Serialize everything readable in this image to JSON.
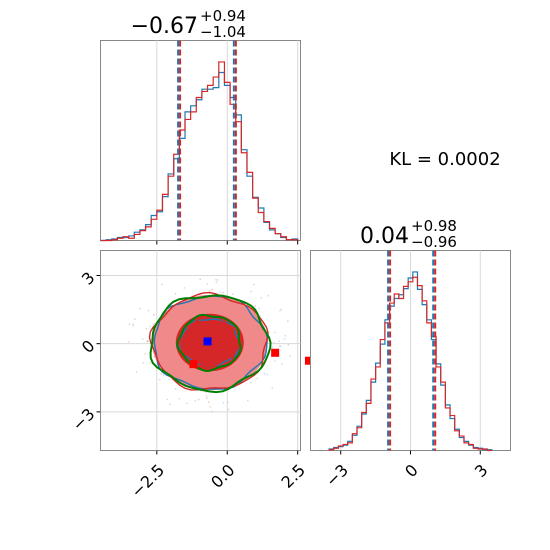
{
  "chart_data": {
    "type": "corner",
    "annotation": "KL = 0.0002",
    "panels": [
      {
        "position": "top-left",
        "type": "histogram",
        "parameter_index": 0,
        "title": {
          "median": "−0.67",
          "plus": "+0.94",
          "minus": "−1.04"
        },
        "xlim": [
          -4.5,
          2.6
        ],
        "xticks": [
          -2.5,
          0.0,
          2.5
        ],
        "xtick_labels": [],
        "quantile_lines": [
          -1.71,
          0.27
        ],
        "bin_edges": [
          -4.5,
          -4.3,
          -4.1,
          -3.9,
          -3.7,
          -3.5,
          -3.3,
          -3.1,
          -2.9,
          -2.7,
          -2.5,
          -2.3,
          -2.1,
          -1.9,
          -1.7,
          -1.5,
          -1.3,
          -1.1,
          -0.9,
          -0.7,
          -0.5,
          -0.3,
          -0.1,
          0.1,
          0.3,
          0.5,
          0.7,
          0.9,
          1.1,
          1.3,
          1.5,
          1.7,
          1.9,
          2.1,
          2.3,
          2.5
        ],
        "series": [
          {
            "name": "",
            "color": "#1f77b4",
            "counts": [
              0,
              1,
              2,
              4,
              4,
              6,
              11,
              14,
              21,
              33,
              38,
              58,
              88,
              108,
              135,
              170,
              178,
              186,
              200,
              200,
              202,
              222,
              205,
              189,
              166,
              120,
              85,
              57,
              43,
              24,
              14,
              9,
              4,
              1,
              2
            ]
          },
          {
            "name": "",
            "color": "#d62728",
            "counts": [
              0,
              0,
              1,
              3,
              5,
              3,
              8,
              13,
              18,
              28,
              40,
              61,
              85,
              114,
              146,
              160,
              170,
              189,
              197,
              205,
              216,
              236,
              209,
              180,
              157,
              116,
              90,
              56,
              37,
              25,
              16,
              9,
              5,
              1,
              1
            ]
          }
        ]
      },
      {
        "position": "bottom-right",
        "type": "histogram",
        "parameter_index": 1,
        "title": {
          "median": "0.04",
          "plus": "+0.98",
          "minus": "−0.96"
        },
        "xlim": [
          -4.3,
          4.3
        ],
        "xticks": [
          -3,
          0,
          3
        ],
        "xtick_labels": [
          "−3",
          "0",
          "3"
        ],
        "quantile_lines": [
          -0.92,
          1.02
        ],
        "bin_edges": [
          -3.5,
          -3.3,
          -3.1,
          -2.9,
          -2.7,
          -2.5,
          -2.3,
          -2.1,
          -1.9,
          -1.7,
          -1.5,
          -1.3,
          -1.1,
          -0.9,
          -0.7,
          -0.5,
          -0.3,
          -0.1,
          0.1,
          0.3,
          0.5,
          0.7,
          0.9,
          1.1,
          1.3,
          1.5,
          1.7,
          1.9,
          2.1,
          2.3,
          2.5,
          2.7,
          2.9,
          3.1,
          3.3,
          3.5
        ],
        "series": [
          {
            "name": "",
            "color": "#1f77b4",
            "counts": [
              2,
              4,
              5,
              7,
              12,
              20,
              32,
              48,
              66,
              90,
              115,
              140,
              172,
              190,
              200,
              205,
              213,
              227,
              235,
              212,
              192,
              172,
              146,
              114,
              86,
              60,
              42,
              28,
              17,
              12,
              7,
              4,
              3,
              1,
              1
            ]
          },
          {
            "name": "",
            "color": "#d62728",
            "counts": [
              1,
              3,
              6,
              8,
              10,
              22,
              30,
              50,
              62,
              94,
              110,
              146,
              168,
              194,
              206,
              200,
              216,
              222,
              228,
              217,
              197,
              168,
              150,
              110,
              90,
              56,
              46,
              26,
              19,
              10,
              8,
              3,
              2,
              2,
              0
            ]
          }
        ]
      },
      {
        "position": "bottom-left",
        "type": "contour",
        "xlim": [
          -4.5,
          2.6
        ],
        "ylim": [
          -4.7,
          4.1
        ],
        "xticks": [
          -2.5,
          0.0,
          2.5
        ],
        "xtick_labels": [
          "−2.5",
          "0.0",
          "2.5"
        ],
        "yticks": [
          -3,
          0,
          3
        ],
        "ytick_labels": [
          "−3",
          "0",
          "3"
        ],
        "center": [
          -0.62,
          0.05
        ],
        "contour_levels": [
          {
            "series": "blue",
            "color": "#1f77b4",
            "radius_x": 1.05,
            "radius_y": 1.05
          },
          {
            "series": "blue",
            "color": "#1f77b4",
            "radius_x": 2.0,
            "radius_y": 2.05
          },
          {
            "series": "red",
            "color": "#d62728",
            "radius_x": 1.05,
            "radius_y": 1.1
          },
          {
            "series": "red",
            "color": "#d62728",
            "radius_x": 2.05,
            "radius_y": 2.1
          },
          {
            "series": "green",
            "color": "#008000",
            "radius_x": 1.1,
            "radius_y": 1.2
          },
          {
            "series": "green",
            "color": "#008000",
            "radius_x": 2.1,
            "radius_y": 2.1
          }
        ],
        "markers": [
          {
            "color": "#0000ff",
            "x": -0.7,
            "y": 0.1
          },
          {
            "color": "#ff0000",
            "x": -1.2,
            "y": -0.9
          },
          {
            "color": "#ff0000",
            "x": 1.7,
            "y": -0.4
          },
          {
            "color": "#ff0000",
            "x": 2.9,
            "y": -0.75
          }
        ]
      }
    ]
  }
}
